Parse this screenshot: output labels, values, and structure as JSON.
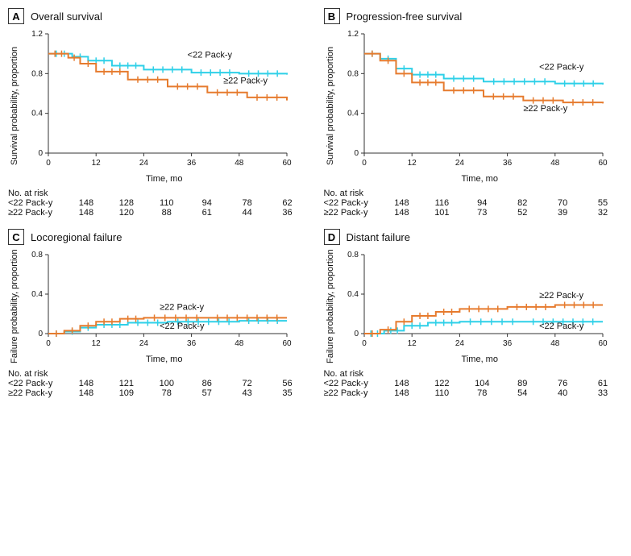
{
  "colors": {
    "cyan": "#2fd0e8",
    "orange": "#e67b2e",
    "axis": "#333333",
    "bg": "#ffffff",
    "text": "#111111"
  },
  "xticks": [
    0,
    12,
    24,
    36,
    48,
    60
  ],
  "xlabel": "Time, mo",
  "panels": [
    {
      "letter": "A",
      "title": "Overall survival",
      "ylabel": "Survival probability, proportion",
      "ymin": 0,
      "ymax": 1.2,
      "ytick_step": 0.4,
      "series": [
        {
          "name": "<22 Pack-y",
          "colorKey": "cyan",
          "points": [
            [
              0,
              1.0
            ],
            [
              6,
              0.97
            ],
            [
              10,
              0.93
            ],
            [
              16,
              0.88
            ],
            [
              24,
              0.84
            ],
            [
              36,
              0.81
            ],
            [
              48,
              0.8
            ],
            [
              60,
              0.79
            ]
          ],
          "label_xy": [
            35,
            0.96
          ]
        },
        {
          "name": "≥22 Pack-y",
          "colorKey": "orange",
          "points": [
            [
              0,
              1.0
            ],
            [
              5,
              0.96
            ],
            [
              8,
              0.9
            ],
            [
              12,
              0.82
            ],
            [
              20,
              0.74
            ],
            [
              30,
              0.67
            ],
            [
              40,
              0.61
            ],
            [
              50,
              0.56
            ],
            [
              60,
              0.53
            ]
          ],
          "label_xy": [
            44,
            0.7
          ]
        }
      ],
      "risk": {
        "title": "No. at risk",
        "rows": [
          {
            "lab": "<22 Pack-y",
            "vals": [
              148,
              128,
              110,
              94,
              78,
              62
            ]
          },
          {
            "lab": "≥22 Pack-y",
            "vals": [
              148,
              120,
              88,
              61,
              44,
              36
            ]
          }
        ]
      }
    },
    {
      "letter": "B",
      "title": "Progression-free survival",
      "ylabel": "Survival probability, proportion",
      "ymin": 0,
      "ymax": 1.2,
      "ytick_step": 0.4,
      "series": [
        {
          "name": "<22 Pack-y",
          "colorKey": "cyan",
          "points": [
            [
              0,
              1.0
            ],
            [
              4,
              0.95
            ],
            [
              8,
              0.85
            ],
            [
              12,
              0.79
            ],
            [
              20,
              0.75
            ],
            [
              30,
              0.72
            ],
            [
              48,
              0.7
            ],
            [
              60,
              0.69
            ]
          ],
          "label_xy": [
            44,
            0.84
          ]
        },
        {
          "name": "≥22 Pack-y",
          "colorKey": "orange",
          "points": [
            [
              0,
              1.0
            ],
            [
              4,
              0.93
            ],
            [
              8,
              0.8
            ],
            [
              12,
              0.71
            ],
            [
              20,
              0.63
            ],
            [
              30,
              0.57
            ],
            [
              40,
              0.53
            ],
            [
              50,
              0.51
            ],
            [
              60,
              0.5
            ]
          ],
          "label_xy": [
            40,
            0.42
          ]
        }
      ],
      "risk": {
        "title": "No. at risk",
        "rows": [
          {
            "lab": "<22 Pack-y",
            "vals": [
              148,
              116,
              94,
              82,
              70,
              55
            ]
          },
          {
            "lab": "≥22 Pack-y",
            "vals": [
              148,
              101,
              73,
              52,
              39,
              32
            ]
          }
        ]
      }
    },
    {
      "letter": "C",
      "title": "Locoregional failure",
      "ylabel": "Failure probability, proportion",
      "ymin": 0,
      "ymax": 0.8,
      "ytick_step": 0.4,
      "series": [
        {
          "name": "<22 Pack-y",
          "colorKey": "cyan",
          "points": [
            [
              0,
              0.0
            ],
            [
              4,
              0.02
            ],
            [
              8,
              0.06
            ],
            [
              12,
              0.09
            ],
            [
              20,
              0.11
            ],
            [
              30,
              0.12
            ],
            [
              48,
              0.13
            ],
            [
              60,
              0.13
            ]
          ],
          "label_xy": [
            28,
            0.05
          ]
        },
        {
          "name": "≥22 Pack-y",
          "colorKey": "orange",
          "points": [
            [
              0,
              0.0
            ],
            [
              4,
              0.03
            ],
            [
              8,
              0.08
            ],
            [
              12,
              0.12
            ],
            [
              18,
              0.15
            ],
            [
              24,
              0.16
            ],
            [
              40,
              0.16
            ],
            [
              60,
              0.16
            ]
          ],
          "label_xy": [
            28,
            0.24
          ]
        }
      ],
      "risk": {
        "title": "No. at risk",
        "rows": [
          {
            "lab": "<22 Pack-y",
            "vals": [
              148,
              121,
              100,
              86,
              72,
              56
            ]
          },
          {
            "lab": "≥22 Pack-y",
            "vals": [
              148,
              109,
              78,
              57,
              43,
              35
            ]
          }
        ]
      }
    },
    {
      "letter": "D",
      "title": "Distant failure",
      "ylabel": "Failure probability, proportion",
      "ymin": 0,
      "ymax": 0.8,
      "ytick_step": 0.4,
      "series": [
        {
          "name": "<22 Pack-y",
          "colorKey": "cyan",
          "points": [
            [
              0,
              0.0
            ],
            [
              5,
              0.03
            ],
            [
              10,
              0.08
            ],
            [
              16,
              0.11
            ],
            [
              24,
              0.12
            ],
            [
              40,
              0.12
            ],
            [
              60,
              0.12
            ]
          ],
          "label_xy": [
            44,
            0.05
          ]
        },
        {
          "name": "≥22 Pack-y",
          "colorKey": "orange",
          "points": [
            [
              0,
              0.0
            ],
            [
              4,
              0.04
            ],
            [
              8,
              0.12
            ],
            [
              12,
              0.18
            ],
            [
              18,
              0.22
            ],
            [
              24,
              0.25
            ],
            [
              36,
              0.27
            ],
            [
              48,
              0.29
            ],
            [
              60,
              0.29
            ]
          ],
          "label_xy": [
            44,
            0.36
          ]
        }
      ],
      "risk": {
        "title": "No. at risk",
        "rows": [
          {
            "lab": "<22 Pack-y",
            "vals": [
              148,
              122,
              104,
              89,
              76,
              61
            ]
          },
          {
            "lab": "≥22 Pack-y",
            "vals": [
              148,
              110,
              78,
              54,
              40,
              33
            ]
          }
        ]
      }
    }
  ]
}
